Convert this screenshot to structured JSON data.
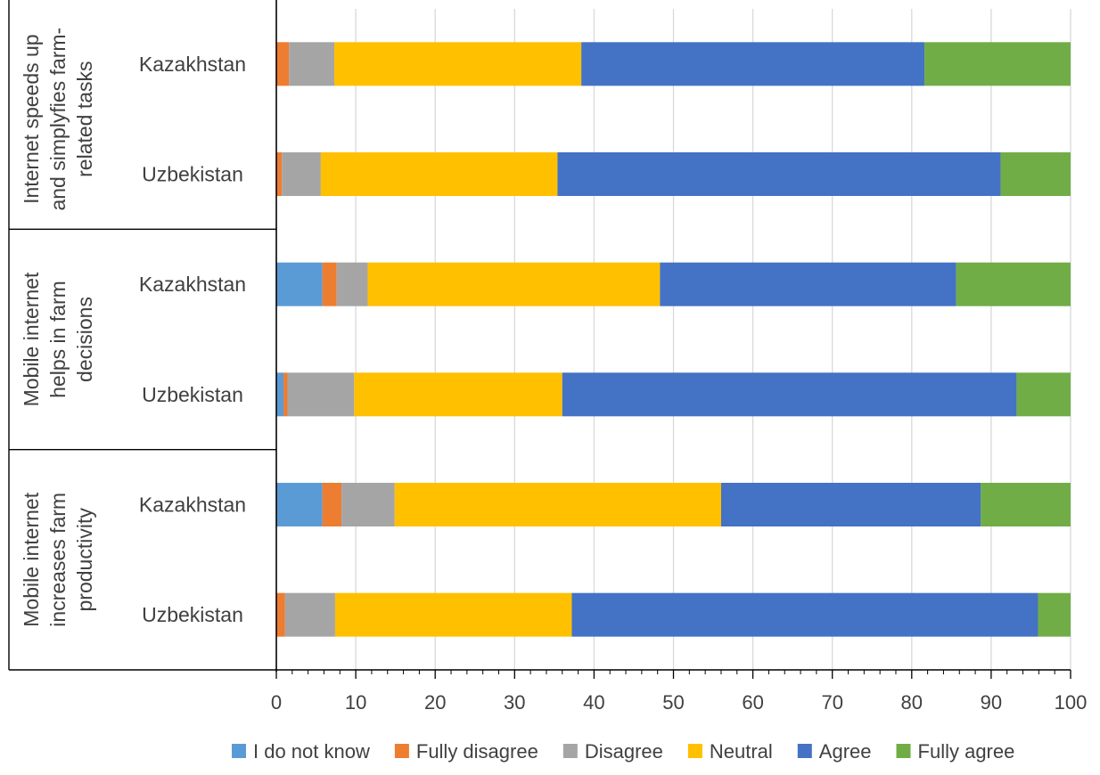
{
  "chart_data": {
    "type": "bar",
    "orientation": "horizontal",
    "stacked": true,
    "xlim": [
      0,
      100
    ],
    "x_ticks": [
      0,
      10,
      20,
      30,
      40,
      50,
      60,
      70,
      80,
      90,
      100
    ],
    "x_tick_labels": [
      "0",
      "10",
      "20",
      "30",
      "40",
      "50",
      "60",
      "70",
      "80",
      "90",
      "100"
    ],
    "grid": true,
    "legend_position": "bottom",
    "groups": [
      {
        "label": "Internet speeds up and simplyfies farm-related tasks",
        "label_lines": [
          "Internet speeds up",
          "and simplyfies farm-",
          "related tasks"
        ]
      },
      {
        "label": "Mobile internet helps in farm decisions",
        "label_lines": [
          "Mobile internet",
          "helps in farm",
          "decisions"
        ]
      },
      {
        "label": "Mobile internet increases farm productivity",
        "label_lines": [
          "Mobile internet",
          "increases farm",
          "productivity"
        ]
      }
    ],
    "categories": [
      {
        "label": "Kazakhstan",
        "group": 0
      },
      {
        "label": "Uzbekistan",
        "group": 0
      },
      {
        "label": "Kazakhstan",
        "group": 1
      },
      {
        "label": "Uzbekistan",
        "group": 1
      },
      {
        "label": "Kazakhstan",
        "group": 2
      },
      {
        "label": "Uzbekistan",
        "group": 2
      }
    ],
    "series": [
      {
        "name": "I do not know",
        "color": "#5B9BD5",
        "values": [
          0.0,
          0.0,
          5.8,
          0.9,
          5.8,
          0.0
        ]
      },
      {
        "name": "Fully disagree",
        "color": "#ED7D31",
        "values": [
          1.6,
          0.7,
          1.8,
          0.5,
          2.4,
          1.1
        ]
      },
      {
        "name": "Disagree",
        "color": "#A5A5A5",
        "values": [
          5.7,
          4.9,
          3.9,
          8.4,
          6.7,
          6.3
        ]
      },
      {
        "name": "Neutral",
        "color": "#FFC000",
        "values": [
          31.1,
          29.8,
          36.8,
          26.2,
          41.1,
          29.8
        ]
      },
      {
        "name": "Agree",
        "color": "#4472C4",
        "values": [
          43.2,
          55.8,
          37.3,
          57.2,
          32.7,
          58.7
        ]
      },
      {
        "name": "Fully agree",
        "color": "#70AD47",
        "values": [
          18.4,
          8.8,
          14.4,
          6.8,
          11.3,
          4.1
        ]
      }
    ]
  }
}
